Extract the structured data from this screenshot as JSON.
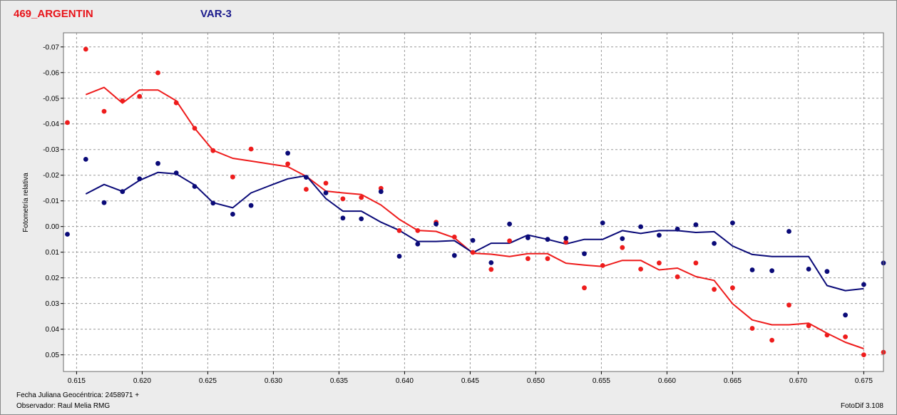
{
  "header": {
    "star_name": "469_ARGENTIN",
    "variable_label": "VAR-3"
  },
  "footer": {
    "date_line": "Fecha Juliana Geocéntrica: 2458971 +",
    "observer_line": "Observador: Raul Melia RMG",
    "version": "FotoDif 3.108"
  },
  "colors": {
    "red": "#ee1c1c",
    "blue": "#0a0a78",
    "grid": "#9a9a9a"
  },
  "chart_data": {
    "type": "scatter",
    "title": "",
    "xlabel": "",
    "ylabel": "Fotometría relativa",
    "xlim": [
      0.614,
      0.6765
    ],
    "ylim": [
      -0.0755,
      0.0565
    ],
    "y_inverted": true,
    "grid": true,
    "xticks": [
      0.615,
      0.62,
      0.625,
      0.63,
      0.635,
      0.64,
      0.645,
      0.65,
      0.655,
      0.66,
      0.665,
      0.67,
      0.675
    ],
    "xtick_labels": [
      "0.615",
      "0.620",
      "0.625",
      "0.630",
      "0.635",
      "0.640",
      "0.645",
      "0.650",
      "0.655",
      "0.660",
      "0.665",
      "0.670",
      "0.675"
    ],
    "yticks": [
      -0.07,
      -0.06,
      -0.05,
      -0.04,
      -0.03,
      -0.02,
      -0.01,
      0.0,
      0.01,
      0.02,
      0.03,
      0.04,
      0.05
    ],
    "ytick_labels": [
      "-0.07",
      "-0.06",
      "-0.05",
      "-0.04",
      "-0.03",
      "-0.02",
      "-0.01",
      "0.00",
      "0.01",
      "0.02",
      "0.03",
      "0.04",
      "0.05"
    ],
    "series": [
      {
        "color": "red",
        "points": [
          [
            0.6143,
            -0.0405
          ],
          [
            0.6157,
            -0.0691
          ],
          [
            0.6171,
            -0.0449
          ],
          [
            0.6185,
            -0.049
          ],
          [
            0.6198,
            -0.0507
          ],
          [
            0.6212,
            -0.0599
          ],
          [
            0.6226,
            -0.0482
          ],
          [
            0.624,
            -0.0383
          ],
          [
            0.6254,
            -0.0296
          ],
          [
            0.6269,
            -0.0193
          ],
          [
            0.6283,
            -0.0302
          ],
          [
            0.6311,
            -0.0244
          ],
          [
            0.6325,
            -0.0145
          ],
          [
            0.634,
            -0.0169
          ],
          [
            0.6353,
            -0.0108
          ],
          [
            0.6367,
            -0.0113
          ],
          [
            0.6382,
            -0.0149
          ],
          [
            0.6396,
            0.0016
          ],
          [
            0.641,
            0.0016
          ],
          [
            0.6424,
            -0.0017
          ],
          [
            0.6438,
            0.0041
          ],
          [
            0.6452,
            0.0101
          ],
          [
            0.6466,
            0.0167
          ],
          [
            0.648,
            0.0056
          ],
          [
            0.6494,
            0.0125
          ],
          [
            0.6509,
            0.0125
          ],
          [
            0.6523,
            0.0061
          ],
          [
            0.6537,
            0.0239
          ],
          [
            0.6551,
            0.0152
          ],
          [
            0.6566,
            0.0082
          ],
          [
            0.658,
            0.0166
          ],
          [
            0.6594,
            0.0142
          ],
          [
            0.6608,
            0.0196
          ],
          [
            0.6622,
            0.0142
          ],
          [
            0.6636,
            0.0245
          ],
          [
            0.665,
            0.0239
          ],
          [
            0.6665,
            0.0397
          ],
          [
            0.668,
            0.0443
          ],
          [
            0.6693,
            0.0306
          ],
          [
            0.6708,
            0.0387
          ],
          [
            0.6722,
            0.0423
          ],
          [
            0.6736,
            0.043
          ],
          [
            0.675,
            0.05
          ],
          [
            0.6765,
            0.049
          ]
        ],
        "trend": [
          [
            0.6157,
            -0.0514
          ],
          [
            0.6171,
            -0.0542
          ],
          [
            0.6185,
            -0.0481
          ],
          [
            0.6198,
            -0.0532
          ],
          [
            0.6212,
            -0.0532
          ],
          [
            0.6226,
            -0.049
          ],
          [
            0.624,
            -0.0383
          ],
          [
            0.6254,
            -0.0297
          ],
          [
            0.6269,
            -0.0266
          ],
          [
            0.6283,
            -0.0255
          ],
          [
            0.6297,
            -0.0244
          ],
          [
            0.6311,
            -0.0233
          ],
          [
            0.6325,
            -0.0196
          ],
          [
            0.634,
            -0.0138
          ],
          [
            0.6353,
            -0.0131
          ],
          [
            0.6367,
            -0.0125
          ],
          [
            0.6382,
            -0.0084
          ],
          [
            0.6396,
            -0.0028
          ],
          [
            0.641,
            0.0015
          ],
          [
            0.6424,
            0.0019
          ],
          [
            0.6438,
            0.0044
          ],
          [
            0.6452,
            0.0104
          ],
          [
            0.6466,
            0.0108
          ],
          [
            0.648,
            0.0117
          ],
          [
            0.6494,
            0.0106
          ],
          [
            0.6509,
            0.0106
          ],
          [
            0.6523,
            0.0143
          ],
          [
            0.6537,
            0.015
          ],
          [
            0.6551,
            0.0156
          ],
          [
            0.6566,
            0.0132
          ],
          [
            0.658,
            0.0132
          ],
          [
            0.6594,
            0.0169
          ],
          [
            0.6608,
            0.0162
          ],
          [
            0.6622,
            0.0195
          ],
          [
            0.6636,
            0.021
          ],
          [
            0.665,
            0.0301
          ],
          [
            0.6665,
            0.0364
          ],
          [
            0.668,
            0.0383
          ],
          [
            0.6693,
            0.0383
          ],
          [
            0.6708,
            0.0377
          ],
          [
            0.6722,
            0.0416
          ],
          [
            0.6736,
            0.0451
          ],
          [
            0.675,
            0.0476
          ]
        ]
      },
      {
        "color": "blue",
        "points": [
          [
            0.6143,
            0.003
          ],
          [
            0.6157,
            -0.0262
          ],
          [
            0.6171,
            -0.0093
          ],
          [
            0.6185,
            -0.0136
          ],
          [
            0.6198,
            -0.0186
          ],
          [
            0.6212,
            -0.0246
          ],
          [
            0.6226,
            -0.0209
          ],
          [
            0.624,
            -0.0156
          ],
          [
            0.6254,
            -0.0091
          ],
          [
            0.6269,
            -0.0048
          ],
          [
            0.6283,
            -0.0082
          ],
          [
            0.6311,
            -0.0286
          ],
          [
            0.6325,
            -0.0192
          ],
          [
            0.634,
            -0.0131
          ],
          [
            0.6353,
            -0.0033
          ],
          [
            0.6367,
            -0.003
          ],
          [
            0.6382,
            -0.0136
          ],
          [
            0.6396,
            0.0116
          ],
          [
            0.641,
            0.0068
          ],
          [
            0.6424,
            -0.001
          ],
          [
            0.6438,
            0.0113
          ],
          [
            0.6452,
            0.0054
          ],
          [
            0.6466,
            0.0141
          ],
          [
            0.648,
            -0.001
          ],
          [
            0.6494,
            0.0044
          ],
          [
            0.6509,
            0.005
          ],
          [
            0.6523,
            0.0046
          ],
          [
            0.6537,
            0.0106
          ],
          [
            0.6551,
            -0.0014
          ],
          [
            0.6566,
            0.0047
          ],
          [
            0.658,
            0.0001
          ],
          [
            0.6594,
            0.0034
          ],
          [
            0.6608,
            0.001
          ],
          [
            0.6622,
            -0.0007
          ],
          [
            0.6636,
            0.0066
          ],
          [
            0.665,
            -0.0014
          ],
          [
            0.6665,
            0.0169
          ],
          [
            0.668,
            0.0172
          ],
          [
            0.6693,
            0.0019
          ],
          [
            0.6708,
            0.0166
          ],
          [
            0.6722,
            0.0175
          ],
          [
            0.6736,
            0.0345
          ],
          [
            0.675,
            0.0226
          ],
          [
            0.6765,
            0.0142
          ]
        ],
        "trend": [
          [
            0.6157,
            -0.0127
          ],
          [
            0.6171,
            -0.0164
          ],
          [
            0.6185,
            -0.0137
          ],
          [
            0.6198,
            -0.018
          ],
          [
            0.6212,
            -0.0211
          ],
          [
            0.6226,
            -0.0205
          ],
          [
            0.624,
            -0.0162
          ],
          [
            0.6254,
            -0.0093
          ],
          [
            0.6269,
            -0.0073
          ],
          [
            0.6283,
            -0.0131
          ],
          [
            0.6297,
            -0.0159
          ],
          [
            0.6311,
            -0.0186
          ],
          [
            0.6325,
            -0.0198
          ],
          [
            0.634,
            -0.0109
          ],
          [
            0.6353,
            -0.006
          ],
          [
            0.6367,
            -0.006
          ],
          [
            0.6382,
            -0.0017
          ],
          [
            0.6396,
            0.0015
          ],
          [
            0.641,
            0.0058
          ],
          [
            0.6424,
            0.0058
          ],
          [
            0.6438,
            0.0055
          ],
          [
            0.6452,
            0.0102
          ],
          [
            0.6466,
            0.0065
          ],
          [
            0.648,
            0.0065
          ],
          [
            0.6494,
            0.0033
          ],
          [
            0.6509,
            0.005
          ],
          [
            0.6523,
            0.0068
          ],
          [
            0.6537,
            0.005
          ],
          [
            0.6551,
            0.005
          ],
          [
            0.6566,
            0.0016
          ],
          [
            0.658,
            0.0027
          ],
          [
            0.6594,
            0.0016
          ],
          [
            0.6608,
            0.0016
          ],
          [
            0.6622,
            0.0023
          ],
          [
            0.6636,
            0.002
          ],
          [
            0.665,
            0.0076
          ],
          [
            0.6665,
            0.0109
          ],
          [
            0.668,
            0.0117
          ],
          [
            0.6693,
            0.0117
          ],
          [
            0.6708,
            0.0117
          ],
          [
            0.6722,
            0.023
          ],
          [
            0.6736,
            0.025
          ],
          [
            0.675,
            0.0242
          ]
        ]
      }
    ]
  }
}
